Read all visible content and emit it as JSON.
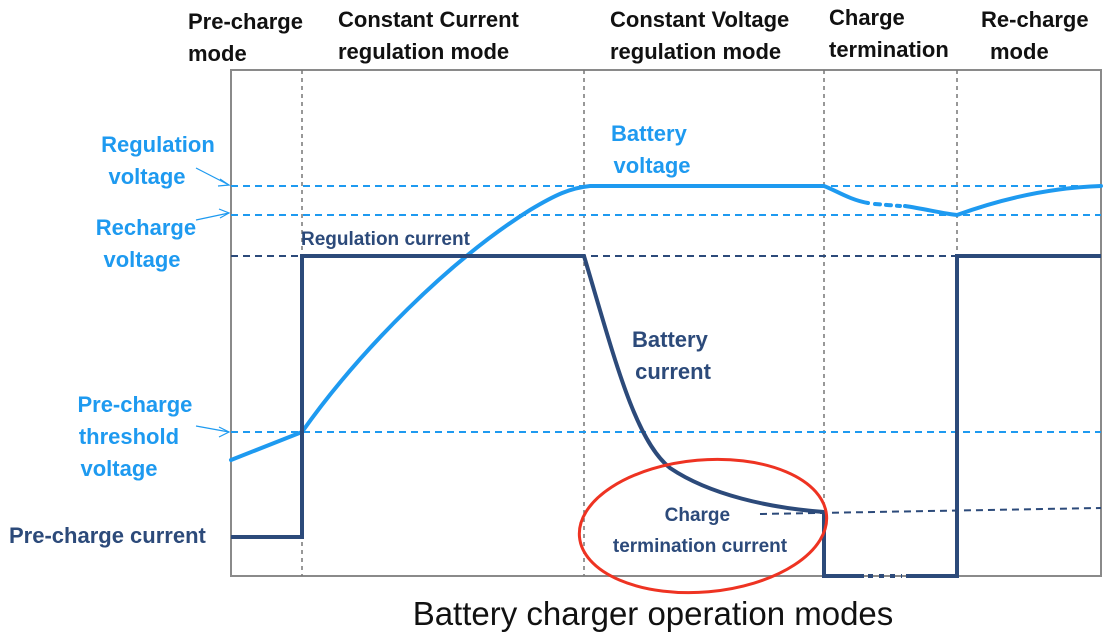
{
  "title": "Battery charger operation modes",
  "colors": {
    "voltage": "#1e9af0",
    "current": "#2c4a7a",
    "termination_marker": "#ee3322",
    "frame": "#8a8a8a",
    "divider": "#777777"
  },
  "modes": [
    {
      "id": "precharge",
      "lines": [
        "Pre-charge",
        "mode"
      ]
    },
    {
      "id": "cc",
      "lines": [
        "Constant Current",
        "regulation mode"
      ]
    },
    {
      "id": "cv",
      "lines": [
        "Constant Voltage",
        "regulation mode"
      ]
    },
    {
      "id": "termination",
      "lines": [
        "Charge",
        "termination"
      ]
    },
    {
      "id": "recharge",
      "lines": [
        "Re-charge",
        "mode"
      ]
    }
  ],
  "voltage_levels": [
    {
      "id": "regulation-voltage",
      "lines": [
        "Regulation",
        "voltage"
      ]
    },
    {
      "id": "recharge-voltage",
      "lines": [
        "Recharge",
        "voltage"
      ]
    },
    {
      "id": "precharge-threshold-voltage",
      "lines": [
        "Pre-charge",
        "threshold",
        "voltage"
      ]
    }
  ],
  "current_levels": [
    {
      "id": "precharge-current",
      "text": "Pre-charge current"
    },
    {
      "id": "regulation-current",
      "text": "Regulation current"
    }
  ],
  "curve_labels": {
    "battery_voltage": [
      "Battery",
      "voltage"
    ],
    "battery_current": [
      "Battery",
      "current"
    ],
    "charge_termination_current": [
      "Charge",
      "termination current"
    ]
  }
}
